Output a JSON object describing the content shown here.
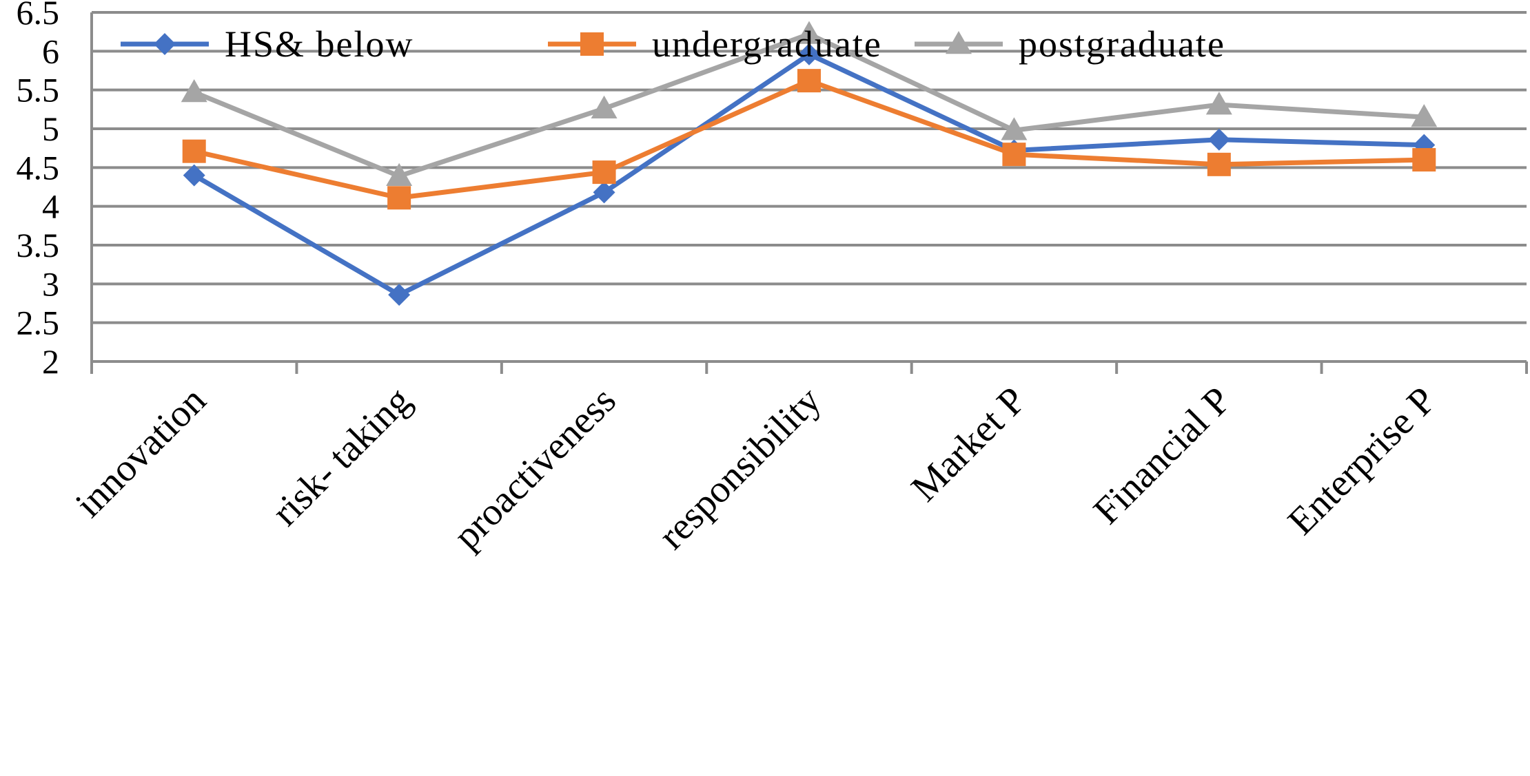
{
  "chart_data": {
    "type": "line",
    "title": "",
    "xlabel": "",
    "ylabel": "",
    "categories": [
      "innovation",
      "risk- taking",
      "proactiveness",
      "responsibility",
      "Market P",
      "Financial P",
      "Enterprise P"
    ],
    "ylim": [
      2,
      6.5
    ],
    "yticks": [
      "2",
      "2.5",
      "3",
      "3.5",
      "4",
      "4.5",
      "5",
      "5.5",
      "6",
      "6.5"
    ],
    "grid": true,
    "legend_position": "top",
    "series": [
      {
        "name": "HS& below",
        "color": "#4472c4",
        "marker": "diamond",
        "values": [
          4.4,
          2.86,
          4.18,
          5.96,
          4.72,
          4.86,
          4.79
        ]
      },
      {
        "name": "undergraduate",
        "color": "#ed7d31",
        "marker": "square",
        "values": [
          4.71,
          4.11,
          4.44,
          5.62,
          4.67,
          4.54,
          4.6
        ]
      },
      {
        "name": "postgraduate",
        "color": "#a5a5a5",
        "marker": "triangle",
        "values": [
          5.47,
          4.39,
          5.26,
          6.22,
          4.98,
          5.31,
          5.15
        ]
      }
    ]
  }
}
